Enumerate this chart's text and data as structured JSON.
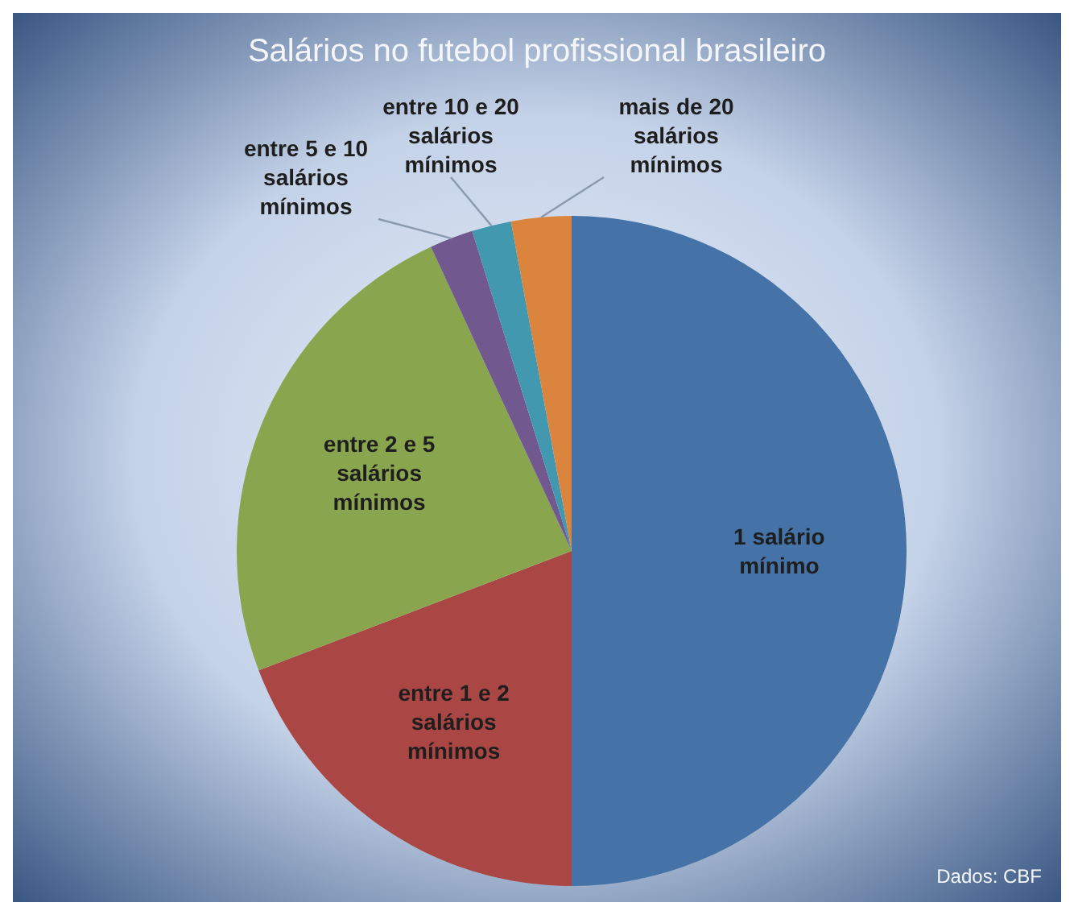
{
  "chart_data": {
    "type": "pie",
    "title": "Salários no futebol profissional brasileiro",
    "categories": [
      "1 salário mínimo",
      "entre 1 e 2 salários mínimos",
      "entre 2 e 5 salários mínimos",
      "entre 5 e 10 salários mínimos",
      "entre 10 e 20 salários mínimos",
      "mais de 20 salários mínimos"
    ],
    "values": [
      50,
      19.2,
      23.9,
      2.1,
      1.9,
      2.9
    ],
    "colors": [
      "#4573a7",
      "#aa4643",
      "#89a54e",
      "#71588f",
      "#4198af",
      "#db843d"
    ],
    "annotations": [
      "Dados: CBF"
    ]
  }
}
